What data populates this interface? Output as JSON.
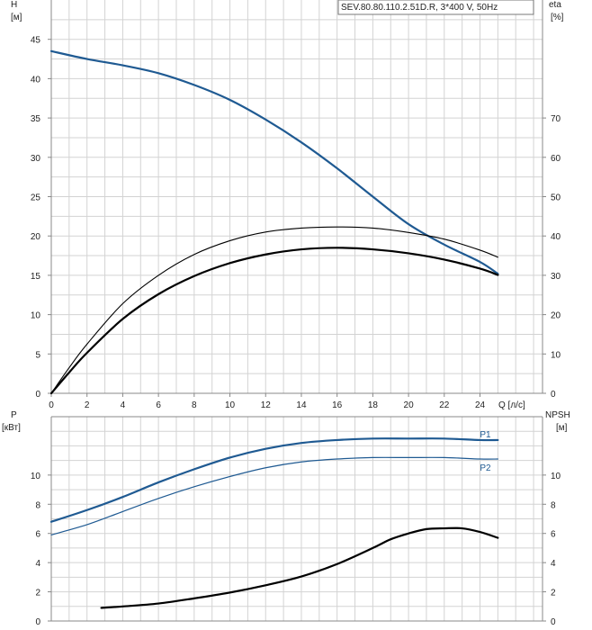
{
  "title": "SEV.80.80.110.2.51D.R, 3*400 V, 50Hz",
  "colors": {
    "blue": "#1f5a92",
    "black": "#000000",
    "grid": "#d3d3d3"
  },
  "chart_data": [
    {
      "type": "line",
      "panel": "top",
      "x_label": "Q [л/с]",
      "left_axis_label": [
        "H",
        "[м]"
      ],
      "right_axis_label": [
        "eta",
        "[%]"
      ],
      "xlim": [
        0,
        27.5
      ],
      "ylim_left": [
        0,
        50
      ],
      "ylim_right": [
        0,
        100
      ],
      "x_ticks": [
        0,
        2,
        4,
        6,
        8,
        10,
        12,
        14,
        16,
        18,
        20,
        22,
        24
      ],
      "left_ticks": [
        0,
        5,
        10,
        15,
        20,
        25,
        30,
        35,
        40,
        45
      ],
      "right_ticks": [
        0,
        10,
        20,
        30,
        40,
        50,
        60,
        70
      ],
      "series": [
        {
          "axis": "left",
          "color": "#1f5a92",
          "width": 2.2,
          "x": [
            0,
            2,
            4,
            6,
            8,
            10,
            12,
            14,
            16,
            18,
            20,
            22,
            24,
            25
          ],
          "y": [
            43.5,
            42.5,
            41.7,
            40.7,
            39.2,
            37.3,
            34.8,
            31.9,
            28.6,
            25.0,
            21.5,
            18.9,
            16.7,
            15.2
          ]
        },
        {
          "axis": "right",
          "color": "#000000",
          "width": 1.1,
          "x": [
            0,
            1,
            2,
            4,
            6,
            8,
            10,
            12,
            14,
            16,
            18,
            20,
            22,
            24,
            25
          ],
          "y": [
            0,
            6.5,
            12.5,
            22.8,
            30.0,
            35.3,
            38.8,
            41.0,
            42.0,
            42.3,
            42.0,
            40.9,
            39.2,
            36.4,
            34.6
          ]
        },
        {
          "axis": "right",
          "color": "#000000",
          "width": 2.2,
          "x": [
            0,
            1,
            2,
            4,
            6,
            8,
            10,
            12,
            14,
            16,
            18,
            20,
            22,
            24,
            25
          ],
          "y": [
            0,
            5.3,
            10.3,
            18.9,
            25.2,
            29.8,
            33.1,
            35.3,
            36.6,
            37.0,
            36.6,
            35.6,
            34.0,
            31.7,
            30.1
          ]
        }
      ]
    },
    {
      "type": "line",
      "panel": "bottom",
      "left_axis_label": [
        "P",
        "[кВт]"
      ],
      "right_axis_label": [
        "NPSH",
        "[м]"
      ],
      "xlim": [
        0,
        27.5
      ],
      "ylim_left": [
        0,
        14
      ],
      "ylim_right": [
        0,
        14
      ],
      "left_ticks": [
        0,
        2,
        4,
        6,
        8,
        10
      ],
      "right_ticks": [
        0,
        2,
        4,
        6,
        8,
        10
      ],
      "series": [
        {
          "name": "P1",
          "axis": "left",
          "color": "#1f5a92",
          "width": 2.2,
          "x": [
            0,
            2,
            4,
            6,
            8,
            10,
            12,
            14,
            16,
            18,
            20,
            22,
            24,
            25
          ],
          "y": [
            6.8,
            7.6,
            8.5,
            9.5,
            10.4,
            11.2,
            11.8,
            12.2,
            12.4,
            12.5,
            12.5,
            12.5,
            12.4,
            12.4
          ]
        },
        {
          "name": "P2",
          "axis": "left",
          "color": "#1f5a92",
          "width": 1.2,
          "x": [
            0,
            2,
            4,
            6,
            8,
            10,
            12,
            14,
            16,
            18,
            20,
            22,
            24,
            25
          ],
          "y": [
            5.9,
            6.6,
            7.5,
            8.4,
            9.2,
            9.9,
            10.5,
            10.9,
            11.1,
            11.2,
            11.2,
            11.2,
            11.1,
            11.1
          ]
        },
        {
          "axis": "right",
          "color": "#000000",
          "width": 2.2,
          "x": [
            2.8,
            4,
            6,
            8,
            10,
            12,
            14,
            16,
            18,
            19,
            20,
            21,
            22,
            23,
            24,
            25
          ],
          "y": [
            0.9,
            1.0,
            1.2,
            1.55,
            1.95,
            2.45,
            3.05,
            3.9,
            5.0,
            5.6,
            6.0,
            6.3,
            6.35,
            6.35,
            6.1,
            5.7
          ]
        }
      ]
    }
  ]
}
